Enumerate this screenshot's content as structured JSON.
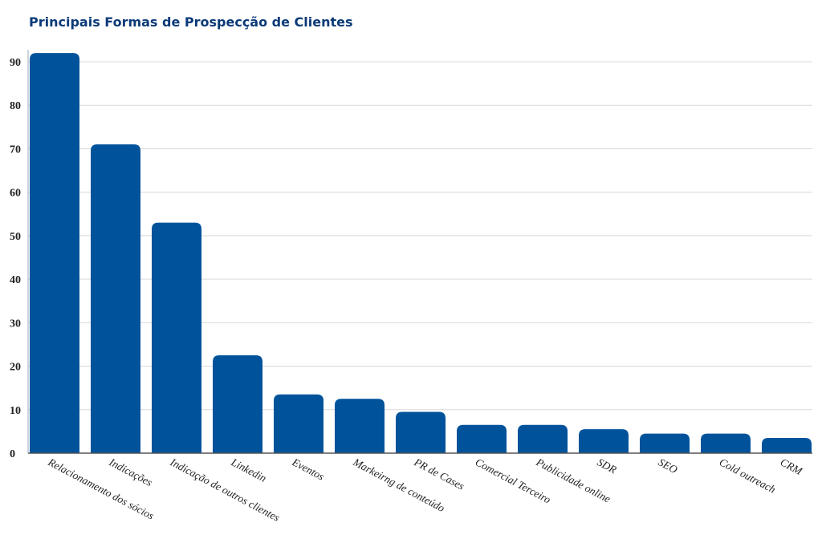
{
  "chart_data": {
    "type": "bar",
    "title": "Principais Formas de Prospecção de Clientes",
    "xlabel": "",
    "ylabel": "",
    "ylim": [
      0,
      90
    ],
    "yticks": [
      "0",
      "10",
      "20",
      "30",
      "40",
      "50",
      "60",
      "70",
      "80",
      "90"
    ],
    "grid": true,
    "bar_color": "#00539b",
    "categories": [
      "Relacionamento dos sócios",
      "Indicações",
      "Indicação de outros clientes",
      "Linkedin",
      "Eventos",
      "Markeirng de conteúdo",
      "PR de Cases",
      "Comercial Terceiro",
      "Publicidade online",
      "SDR",
      "SEO",
      "Cold outreach",
      "CRM"
    ],
    "values": [
      92,
      71,
      53,
      22.5,
      13.5,
      12.5,
      9.5,
      6.5,
      6.5,
      5.5,
      4.5,
      4.5,
      3.5
    ]
  }
}
